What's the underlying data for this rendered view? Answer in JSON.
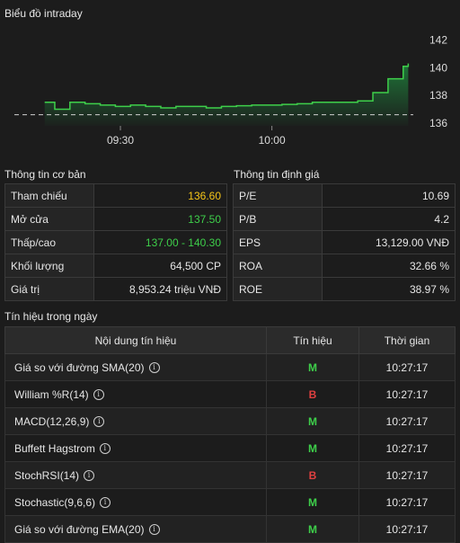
{
  "chart": {
    "title": "Biểu đồ intraday",
    "y_ticks": [
      "142",
      "140",
      "138",
      "136"
    ],
    "x_ticks": [
      "09:30",
      "10:00"
    ],
    "reference_price": 136.6,
    "colors": {
      "line": "#3ecf4a",
      "fill_top": "#1f7a3a",
      "ref_line": "#cfcfcf"
    }
  },
  "chart_data": {
    "type": "area",
    "title": "Biểu đồ intraday",
    "xlabel": "",
    "ylabel": "",
    "ylim": [
      135.8,
      143.2
    ],
    "x": [
      "09:15",
      "09:17",
      "09:20",
      "09:23",
      "09:26",
      "09:29",
      "09:32",
      "09:35",
      "09:38",
      "09:41",
      "09:44",
      "09:47",
      "09:50",
      "09:53",
      "09:56",
      "09:59",
      "10:02",
      "10:05",
      "10:08",
      "10:11",
      "10:14",
      "10:17",
      "10:20",
      "10:23",
      "10:26",
      "10:27"
    ],
    "values": [
      137.5,
      137.0,
      137.5,
      137.4,
      137.3,
      137.2,
      137.3,
      137.2,
      137.1,
      137.2,
      137.2,
      137.1,
      137.2,
      137.25,
      137.3,
      137.3,
      137.35,
      137.4,
      137.5,
      137.5,
      137.5,
      137.6,
      138.2,
      139.2,
      140.1,
      140.3
    ]
  },
  "basic_info": {
    "title": "Thông tin cơ bản",
    "rows": [
      {
        "label": "Tham chiếu",
        "value": "136.60",
        "color": "yellow"
      },
      {
        "label": "Mở cửa",
        "value": "137.50",
        "color": "green"
      },
      {
        "label": "Thấp/cao",
        "value": "137.00 - 140.30",
        "color": "green"
      },
      {
        "label": "Khối lượng",
        "value": "64,500 CP",
        "color": "white"
      },
      {
        "label": "Giá trị",
        "value": "8,953.24 triệu VNĐ",
        "color": "white"
      }
    ]
  },
  "valuation": {
    "title": "Thông tin định giá",
    "rows": [
      {
        "label": "P/E",
        "value": "10.69"
      },
      {
        "label": "P/B",
        "value": "4.2"
      },
      {
        "label": "EPS",
        "value": "13,129.00 VNĐ"
      },
      {
        "label": "ROA",
        "value": "32.66 %"
      },
      {
        "label": "ROE",
        "value": "38.97 %"
      }
    ]
  },
  "signals": {
    "title": "Tín hiệu trong ngày",
    "headers": [
      "Nội dung tín hiệu",
      "Tín hiệu",
      "Thời gian"
    ],
    "rows": [
      {
        "name": "Giá so với đường SMA(20)",
        "signal": "M",
        "time": "10:27:17"
      },
      {
        "name": "William %R(14)",
        "signal": "B",
        "time": "10:27:17"
      },
      {
        "name": "MACD(12,26,9)",
        "signal": "M",
        "time": "10:27:17"
      },
      {
        "name": "Buffett Hagstrom",
        "signal": "M",
        "time": "10:27:17"
      },
      {
        "name": "StochRSI(14)",
        "signal": "B",
        "time": "10:27:17"
      },
      {
        "name": "Stochastic(9,6,6)",
        "signal": "M",
        "time": "10:27:17"
      },
      {
        "name": "Giá so với đường EMA(20)",
        "signal": "M",
        "time": "10:27:17"
      }
    ],
    "info_icon": "info-icon"
  }
}
